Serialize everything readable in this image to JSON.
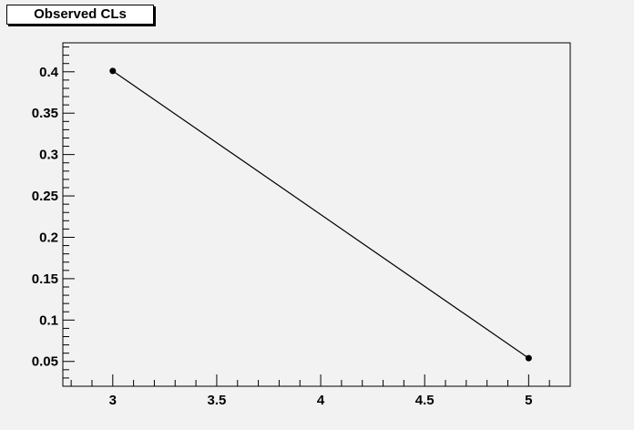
{
  "chart_data": {
    "type": "line",
    "title": "Observed CLs",
    "xlabel": "",
    "ylabel": "",
    "x": [
      3,
      5
    ],
    "series": [
      {
        "values": [
          0.401,
          0.054
        ]
      }
    ],
    "xlim": [
      2.76,
      5.2
    ],
    "ylim": [
      0.02,
      0.435
    ],
    "xticks": [
      3,
      3.5,
      4,
      4.5,
      5
    ],
    "xtick_labels": [
      "3",
      "3.5",
      "4",
      "4.5",
      "5"
    ],
    "yticks": [
      0.05,
      0.1,
      0.15,
      0.2,
      0.25,
      0.3,
      0.35,
      0.4
    ],
    "ytick_labels": [
      "0.05",
      "0.1",
      "0.15",
      "0.2",
      "0.25",
      "0.3",
      "0.35",
      "0.4"
    ],
    "grid": false,
    "markers": true,
    "line_color": "#000000",
    "frame_background": "#f2f2f2"
  }
}
